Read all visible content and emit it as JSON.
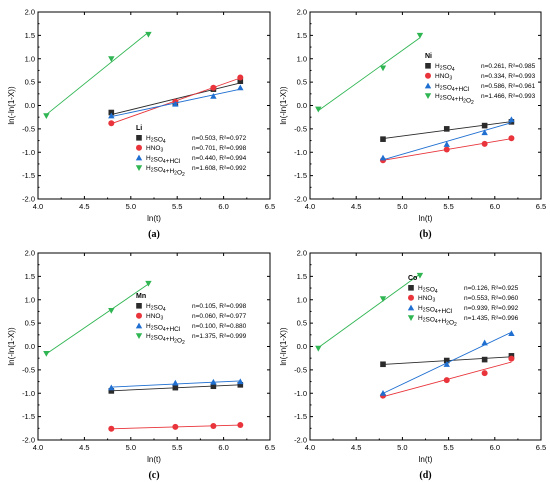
{
  "colors": {
    "H2SO4": "#2b2b2b",
    "HNO3": "#e8343a",
    "H2SO4_HCl": "#1f6fd1",
    "H2SO4_H2O2": "#2fb552"
  },
  "chart_data": [
    {
      "type": "scatter",
      "panel_label": "(a)",
      "element": "Li",
      "xlabel": "ln(t)",
      "ylabel": "ln(-ln(1-X))",
      "xlim": [
        4.0,
        6.5
      ],
      "ylim": [
        -2.0,
        2.0
      ],
      "xticks": [
        "4.0",
        "4.5",
        "5.0",
        "5.5",
        "6.0",
        "6.5"
      ],
      "yticks": [
        "-2.0",
        "-1.5",
        "-1.0",
        "-0.5",
        "0.0",
        "0.5",
        "1.0",
        "1.5",
        "2.0"
      ],
      "legend_position": "lower-right",
      "series": [
        {
          "name": "H₂SO₄",
          "marker": "square",
          "color_key": "H2SO4",
          "fit_text": "n=0.503, R²=0.972",
          "x": [
            4.79,
            5.48,
            5.89,
            6.18
          ],
          "y": [
            -0.15,
            0.05,
            0.35,
            0.52
          ]
        },
        {
          "name": "HNO₃",
          "marker": "circle",
          "color_key": "HNO3",
          "fit_text": "n=0.701, R²=0.998",
          "x": [
            4.79,
            5.48,
            5.89,
            6.18
          ],
          "y": [
            -0.38,
            0.08,
            0.38,
            0.6
          ]
        },
        {
          "name": "H₂SO₄+HCl",
          "marker": "triangle-up",
          "color_key": "H2SO4_HCl",
          "fit_text": "n=0.440, R²=0.994",
          "x": [
            4.79,
            5.48,
            5.89,
            6.18
          ],
          "y": [
            -0.22,
            0.03,
            0.2,
            0.38
          ]
        },
        {
          "name": "H₂SO₄+H₂O₂",
          "marker": "triangle-down",
          "color_key": "H2SO4_H2O2",
          "fit_text": "n=1.608, R²=0.992",
          "x": [
            4.09,
            4.79,
            5.19
          ],
          "y": [
            -0.22,
            1.0,
            1.52
          ]
        }
      ]
    },
    {
      "type": "scatter",
      "panel_label": "(b)",
      "element": "Ni",
      "xlabel": "ln(t)",
      "ylabel": "ln(-ln(1-X))",
      "xlim": [
        4.0,
        6.5
      ],
      "ylim": [
        -2.0,
        2.0
      ],
      "xticks": [
        "4.0",
        "4.5",
        "5.0",
        "5.5",
        "6.0",
        "6.5"
      ],
      "yticks": [
        "-2.0",
        "-1.5",
        "-1.0",
        "-0.5",
        "0.0",
        "0.5",
        "1.0",
        "1.5",
        "2.0"
      ],
      "legend_position": "upper-right",
      "series": [
        {
          "name": "H₂SO₄",
          "marker": "square",
          "color_key": "H2SO4",
          "fit_text": "n=0.261, R²=0.985",
          "x": [
            4.79,
            5.48,
            5.89,
            6.18
          ],
          "y": [
            -0.72,
            -0.5,
            -0.43,
            -0.35
          ]
        },
        {
          "name": "HNO₃",
          "marker": "circle",
          "color_key": "HNO3",
          "fit_text": "n=0.334, R²=0.993",
          "x": [
            4.79,
            5.48,
            5.89,
            6.18
          ],
          "y": [
            -1.17,
            -0.94,
            -0.82,
            -0.7
          ]
        },
        {
          "name": "H₂SO₄+HCl",
          "marker": "triangle-up",
          "color_key": "H2SO4_HCl",
          "fit_text": "n=0.586, R²=0.961",
          "x": [
            4.79,
            5.48,
            5.89,
            6.18
          ],
          "y": [
            -1.12,
            -0.83,
            -0.58,
            -0.3
          ]
        },
        {
          "name": "H₂SO₄+H₂O₂",
          "marker": "triangle-down",
          "color_key": "H2SO4_H2O2",
          "fit_text": "n=1.466, R²=0.993",
          "x": [
            4.09,
            4.79,
            5.19
          ],
          "y": [
            -0.08,
            0.8,
            1.5
          ]
        }
      ]
    },
    {
      "type": "scatter",
      "panel_label": "(c)",
      "element": "Mn",
      "xlabel": "ln(t)",
      "ylabel": "ln(-ln(1-X))",
      "xlim": [
        4.0,
        6.5
      ],
      "ylim": [
        -2.0,
        2.0
      ],
      "xticks": [
        "4.0",
        "4.5",
        "5.0",
        "5.5",
        "6.0",
        "6.5"
      ],
      "yticks": [
        "-2.0",
        "-1.5",
        "-1.0",
        "-0.5",
        "0.0",
        "0.5",
        "1.0",
        "1.5",
        "2.0"
      ],
      "legend_position": "right",
      "series": [
        {
          "name": "H₂SO₄",
          "marker": "square",
          "color_key": "H2SO4",
          "fit_text": "n=0.105, R²=0.998",
          "x": [
            4.79,
            5.48,
            5.89,
            6.18
          ],
          "y": [
            -0.95,
            -0.88,
            -0.85,
            -0.82
          ]
        },
        {
          "name": "HNO₃",
          "marker": "circle",
          "color_key": "HNO3",
          "fit_text": "n=0.060, R²=0.977",
          "x": [
            4.79,
            5.48,
            5.89,
            6.18
          ],
          "y": [
            -1.76,
            -1.72,
            -1.7,
            -1.68
          ]
        },
        {
          "name": "H₂SO₄+HCl",
          "marker": "triangle-up",
          "color_key": "H2SO4_HCl",
          "fit_text": "n=0.100, R²=0.880",
          "x": [
            4.79,
            5.48,
            5.89,
            6.18
          ],
          "y": [
            -0.88,
            -0.78,
            -0.76,
            -0.75
          ]
        },
        {
          "name": "H₂SO₄+H₂O₂",
          "marker": "triangle-down",
          "color_key": "H2SO4_H2O2",
          "fit_text": "n=1.375, R²=0.999",
          "x": [
            4.09,
            4.79,
            5.19
          ],
          "y": [
            -0.15,
            0.77,
            1.35
          ]
        }
      ]
    },
    {
      "type": "scatter",
      "panel_label": "(d)",
      "element": "Co",
      "xlabel": "ln(t)",
      "ylabel": "ln(-ln(1-X))",
      "xlim": [
        4.0,
        6.5
      ],
      "ylim": [
        -2.0,
        2.0
      ],
      "xticks": [
        "4.0",
        "4.5",
        "5.0",
        "5.5",
        "6.0",
        "6.5"
      ],
      "yticks": [
        "-2.0",
        "-1.5",
        "-1.0",
        "-0.5",
        "0.0",
        "0.5",
        "1.0",
        "1.5",
        "2.0"
      ],
      "legend_position": "upper-right",
      "series": [
        {
          "name": "H₂SO₄",
          "marker": "square",
          "color_key": "H2SO4",
          "fit_text": "n=0.126, R²=0.925",
          "x": [
            4.79,
            5.48,
            5.89,
            6.18
          ],
          "y": [
            -0.38,
            -0.3,
            -0.28,
            -0.2
          ]
        },
        {
          "name": "HNO₃",
          "marker": "circle",
          "color_key": "HNO3",
          "fit_text": "n=0.553, R²=0.960",
          "x": [
            4.79,
            5.48,
            5.89,
            6.18
          ],
          "y": [
            -1.05,
            -0.72,
            -0.57,
            -0.26
          ]
        },
        {
          "name": "H₂SO₄+HCl",
          "marker": "triangle-up",
          "color_key": "H2SO4_HCl",
          "fit_text": "n=0.939, R²=0.992",
          "x": [
            4.79,
            5.48,
            5.89,
            6.18
          ],
          "y": [
            -1.0,
            -0.38,
            0.08,
            0.28
          ]
        },
        {
          "name": "H₂SO₄+H₂O₂",
          "marker": "triangle-down",
          "color_key": "H2SO4_H2O2",
          "fit_text": "n=1.435, R²=0.996",
          "x": [
            4.09,
            4.79,
            5.19
          ],
          "y": [
            -0.04,
            1.02,
            1.52
          ]
        }
      ]
    }
  ]
}
